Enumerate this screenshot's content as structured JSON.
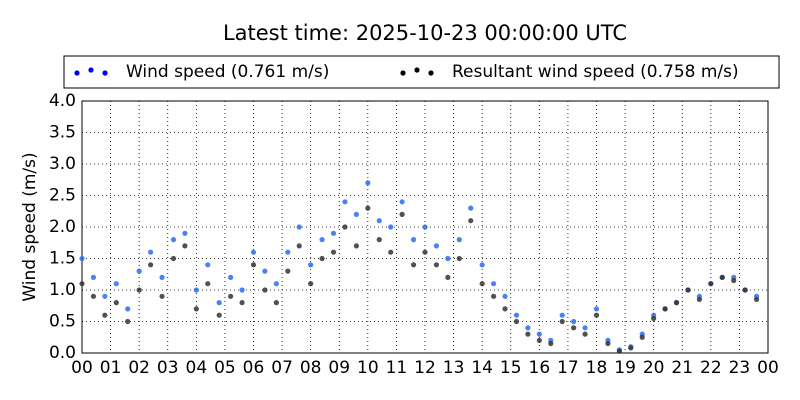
{
  "chart_data": {
    "type": "scatter",
    "title": "Latest time: 2025-10-23 00:00:00 UTC",
    "y_label": "Wind speed (m/s)",
    "x": [
      0,
      0.4,
      0.8,
      1.2,
      1.6,
      2.0,
      2.4,
      2.8,
      3.2,
      3.6,
      4.0,
      4.4,
      4.8,
      5.2,
      5.6,
      6.0,
      6.4,
      6.8,
      7.2,
      7.6,
      8.0,
      8.4,
      8.8,
      9.2,
      9.6,
      10.0,
      10.4,
      10.8,
      11.2,
      11.6,
      12.0,
      12.4,
      12.8,
      13.2,
      13.6,
      14.0,
      14.4,
      14.8,
      15.2,
      15.6,
      16.0,
      16.4,
      16.8,
      17.2,
      17.6,
      18.0,
      18.4,
      18.8,
      19.2,
      19.6,
      20.0,
      20.4,
      20.8,
      21.2,
      21.6,
      22.0,
      22.4,
      22.8,
      23.2,
      23.6
    ],
    "series": [
      {
        "name": "Wind speed (0.761 m/s)",
        "color": "#2a6cf5",
        "values": [
          1.5,
          1.2,
          0.9,
          1.1,
          0.7,
          1.3,
          1.6,
          1.2,
          1.8,
          1.9,
          1.0,
          1.4,
          0.8,
          1.2,
          1.0,
          1.6,
          1.3,
          1.1,
          1.6,
          2.0,
          1.4,
          1.8,
          1.9,
          2.4,
          2.2,
          2.7,
          2.1,
          2.0,
          2.4,
          1.8,
          2.0,
          1.7,
          1.5,
          1.8,
          2.3,
          1.4,
          1.1,
          0.9,
          0.6,
          0.4,
          0.3,
          0.2,
          0.6,
          0.5,
          0.4,
          0.7,
          0.2,
          0.05,
          0.1,
          0.3,
          0.6,
          0.7,
          0.8,
          1.0,
          0.9,
          1.1,
          1.2,
          1.2,
          1.0,
          0.9
        ]
      },
      {
        "name": "Resultant wind speed (0.758 m/s)",
        "color": "#333333",
        "values": [
          1.1,
          0.9,
          0.6,
          0.8,
          0.5,
          1.0,
          1.4,
          0.9,
          1.5,
          1.7,
          0.7,
          1.1,
          0.6,
          0.9,
          0.8,
          1.4,
          1.0,
          0.8,
          1.3,
          1.7,
          1.1,
          1.5,
          1.6,
          2.0,
          1.7,
          2.3,
          1.8,
          1.6,
          2.2,
          1.4,
          1.6,
          1.4,
          1.2,
          1.5,
          2.1,
          1.1,
          0.9,
          0.7,
          0.5,
          0.3,
          0.2,
          0.15,
          0.5,
          0.4,
          0.3,
          0.6,
          0.15,
          0.03,
          0.08,
          0.25,
          0.55,
          0.7,
          0.8,
          1.0,
          0.85,
          1.1,
          1.2,
          1.15,
          1.0,
          0.85
        ]
      }
    ],
    "xlim": [
      0,
      24
    ],
    "xticks": [
      {
        "value": 0,
        "label": "00"
      },
      {
        "value": 1,
        "label": "01"
      },
      {
        "value": 2,
        "label": "02"
      },
      {
        "value": 3,
        "label": "03"
      },
      {
        "value": 4,
        "label": "04"
      },
      {
        "value": 5,
        "label": "05"
      },
      {
        "value": 6,
        "label": "06"
      },
      {
        "value": 7,
        "label": "07"
      },
      {
        "value": 8,
        "label": "08"
      },
      {
        "value": 9,
        "label": "09"
      },
      {
        "value": 10,
        "label": "10"
      },
      {
        "value": 11,
        "label": "11"
      },
      {
        "value": 12,
        "label": "12"
      },
      {
        "value": 13,
        "label": "13"
      },
      {
        "value": 14,
        "label": "14"
      },
      {
        "value": 15,
        "label": "15"
      },
      {
        "value": 16,
        "label": "16"
      },
      {
        "value": 17,
        "label": "17"
      },
      {
        "value": 18,
        "label": "18"
      },
      {
        "value": 19,
        "label": "19"
      },
      {
        "value": 20,
        "label": "20"
      },
      {
        "value": 21,
        "label": "21"
      },
      {
        "value": 22,
        "label": "22"
      },
      {
        "value": 23,
        "label": "23"
      },
      {
        "value": 24,
        "label": "00"
      }
    ],
    "ylim": [
      0,
      4
    ],
    "yticks": [
      {
        "value": 0,
        "label": "0.0"
      },
      0.5,
      {
        "value": 1,
        "label": "1.0"
      },
      1.5,
      {
        "value": 2,
        "label": "2.0"
      },
      2.5,
      {
        "value": 3,
        "label": "3.0"
      },
      3.5,
      {
        "value": 4,
        "label": "4.0"
      }
    ],
    "grid": true
  }
}
